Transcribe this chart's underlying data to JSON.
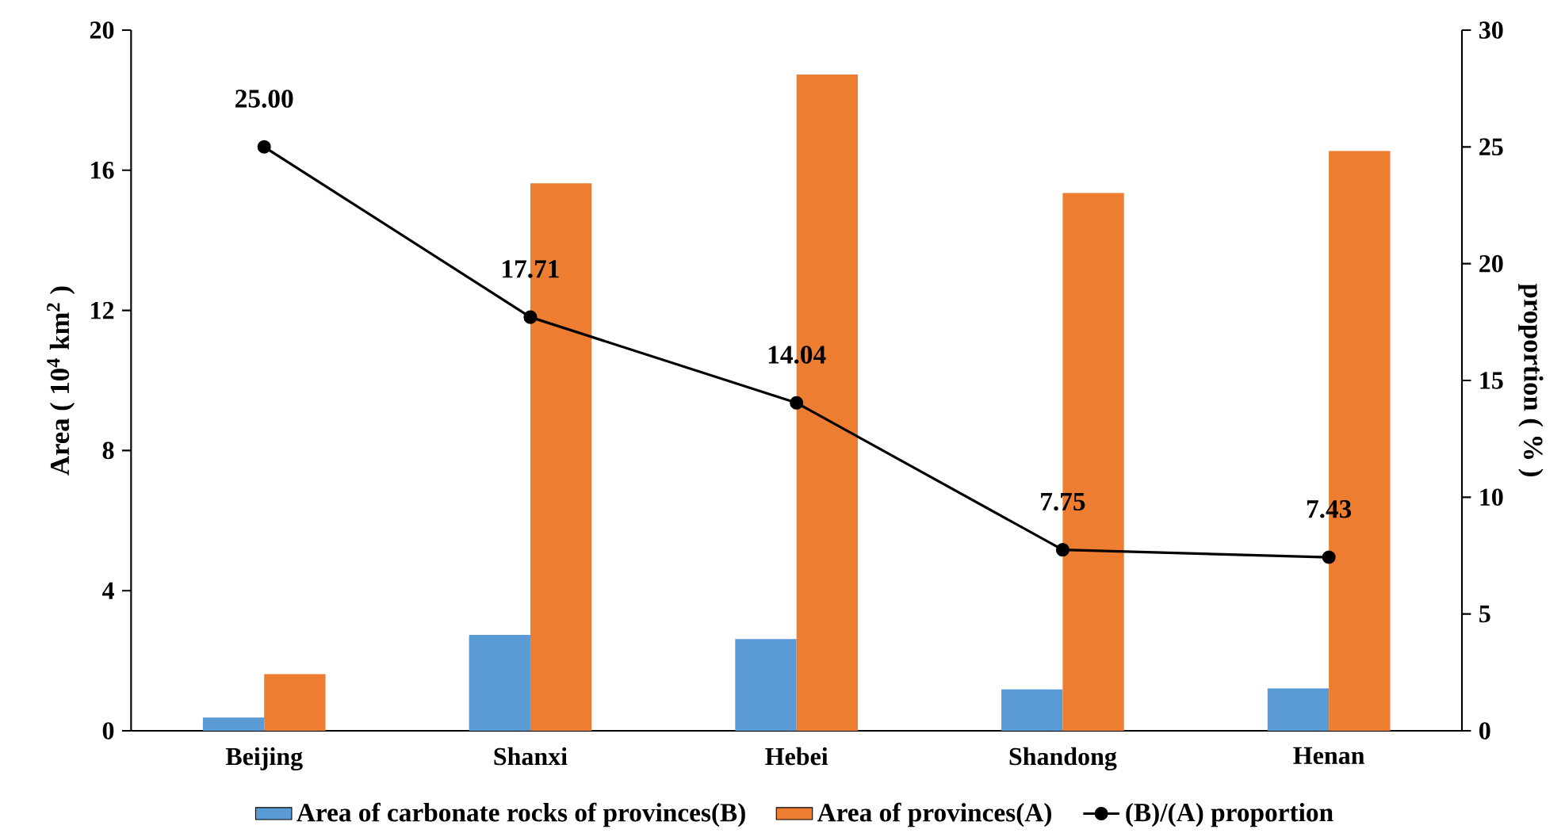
{
  "chart_data": {
    "type": "bar",
    "ylabel": "Area ( 10$^{4}$ km$^{2}$ )",
    "y2label": "proportion ( % )",
    "categories": [
      "Beijing",
      "Shanxi",
      "Hebei",
      "Shandong",
      "Henan"
    ],
    "series": [
      {
        "name": "Area of carbonate rocks of provinces(B)",
        "color": "#5b9bd5",
        "values": [
          0.38,
          2.74,
          2.62,
          1.18,
          1.21
        ]
      },
      {
        "name": "Area of provinces(A)",
        "color": "#ed7d31",
        "values": [
          1.62,
          15.63,
          18.73,
          15.35,
          16.55
        ]
      },
      {
        "name": "(B)/(A) proportion",
        "type": "line",
        "axis": "y2",
        "color": "#000000",
        "marker": "circle",
        "line_style": "solid",
        "values": [
          25.0,
          17.71,
          14.04,
          7.75,
          7.43
        ],
        "value_labels": [
          "25.00",
          "17.71",
          "14.04",
          "7.75",
          "7.43"
        ]
      }
    ],
    "ylim": [
      0,
      20
    ],
    "yticks": [
      0,
      4,
      8,
      12,
      16,
      20
    ],
    "y2lim": [
      0,
      30
    ],
    "y2ticks": [
      0,
      5,
      10,
      15,
      20,
      25,
      30
    ],
    "grid": false,
    "legend": "bottom"
  }
}
